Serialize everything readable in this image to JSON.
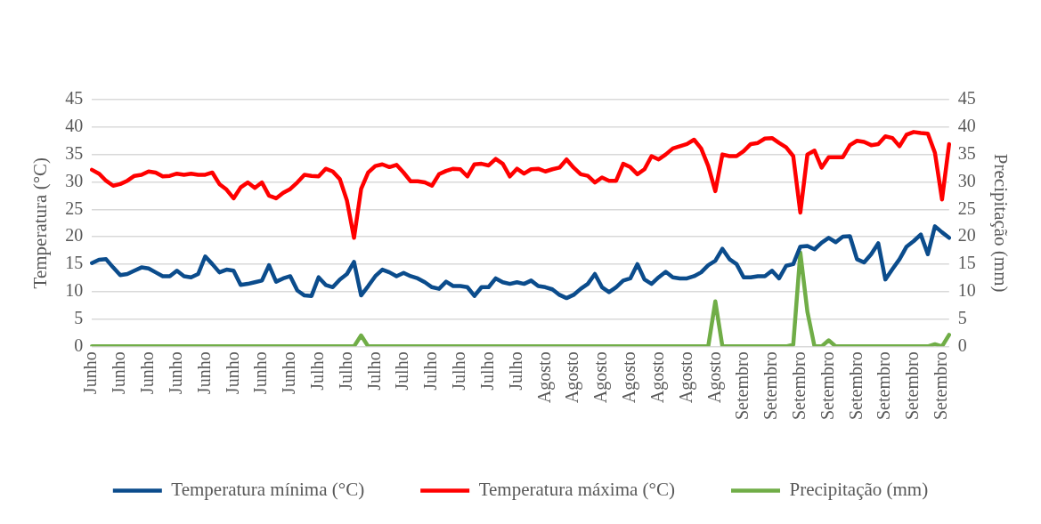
{
  "chart_data": {
    "type": "line",
    "ylabel": "Temperatura (°C)",
    "y2label": "Precipitação (mm)",
    "categories": [
      "Junho",
      null,
      null,
      null,
      "Junho",
      null,
      null,
      null,
      "Junho",
      null,
      null,
      null,
      "Junho",
      null,
      null,
      null,
      "Junho",
      null,
      null,
      null,
      "Junho",
      null,
      null,
      null,
      "Junho",
      null,
      null,
      null,
      "Junho",
      null,
      null,
      null,
      "Julho",
      null,
      null,
      null,
      "Julho",
      null,
      null,
      null,
      "Julho",
      null,
      null,
      null,
      "Julho",
      null,
      null,
      null,
      "Julho",
      null,
      null,
      null,
      "Julho",
      null,
      null,
      null,
      "Julho",
      null,
      null,
      null,
      "Julho",
      null,
      null,
      null,
      "Agosto",
      null,
      null,
      null,
      "Agosto",
      null,
      null,
      null,
      "Agosto",
      null,
      null,
      null,
      "Agosto",
      null,
      null,
      null,
      "Agosto",
      null,
      null,
      null,
      "Agosto",
      null,
      null,
      null,
      "Agosto",
      null,
      null,
      null,
      "Setembro",
      null,
      null,
      null,
      "Setembro",
      null,
      null,
      null,
      "Setembro",
      null,
      null,
      null,
      "Setembro",
      null,
      null,
      null,
      "Setembro",
      null,
      null,
      null,
      "Setembro",
      null,
      null,
      null,
      "Setembro",
      null,
      null,
      null,
      "Setembro",
      null
    ],
    "series": [
      {
        "name": "Temperatura mínima (°C)",
        "color": "#0b4c8c",
        "values": [
          15.2,
          15.8,
          15.9,
          14.4,
          13.0,
          13.2,
          13.8,
          14.4,
          14.2,
          13.5,
          12.8,
          12.8,
          13.8,
          12.8,
          12.6,
          13.2,
          16.4,
          15.0,
          13.5,
          14.0,
          13.8,
          11.2,
          11.4,
          11.7,
          12.0,
          14.8,
          11.8,
          12.4,
          12.8,
          10.2,
          9.3,
          9.2,
          12.6,
          11.2,
          10.8,
          12.2,
          13.2,
          15.4,
          9.3,
          11.0,
          12.8,
          14.0,
          13.5,
          12.8,
          13.4,
          12.8,
          12.4,
          11.7,
          10.8,
          10.5,
          11.8,
          11.0,
          11.0,
          10.8,
          9.2,
          10.8,
          10.8,
          12.4,
          11.7,
          11.4,
          11.7,
          11.4,
          12.0,
          11.0,
          10.8,
          10.4,
          9.4,
          8.8,
          9.4,
          10.5,
          11.4,
          13.2,
          10.8,
          9.9,
          10.8,
          12.0,
          12.4,
          15.0,
          12.2,
          11.4,
          12.6,
          13.6,
          12.6,
          12.4,
          12.4,
          12.8,
          13.5,
          14.8,
          15.6,
          17.8,
          15.9,
          15.0,
          12.6,
          12.6,
          12.8,
          12.8,
          13.8,
          12.4,
          14.7,
          15.0,
          18.2,
          18.3,
          17.7,
          18.9,
          19.8,
          19.0,
          20.0,
          20.1,
          15.9,
          15.3,
          16.8,
          18.8,
          12.2,
          14.1,
          15.9,
          18.2,
          19.2,
          20.4,
          16.8,
          21.9,
          20.8,
          19.8
        ]
      },
      {
        "name": "Temperatura máxima (°C)",
        "color": "#ff0000",
        "values": [
          32.2,
          31.5,
          30.2,
          29.3,
          29.6,
          30.2,
          31.1,
          31.3,
          31.9,
          31.7,
          31.0,
          31.1,
          31.5,
          31.3,
          31.5,
          31.3,
          31.3,
          31.7,
          29.6,
          28.6,
          27.0,
          29.0,
          29.9,
          28.9,
          29.9,
          27.5,
          27.0,
          28.0,
          28.7,
          29.9,
          31.3,
          31.1,
          31.0,
          32.4,
          31.9,
          30.5,
          26.6,
          19.8,
          28.7,
          31.7,
          32.9,
          33.2,
          32.7,
          33.1,
          31.7,
          30.1,
          30.1,
          29.9,
          29.3,
          31.4,
          32.0,
          32.4,
          32.3,
          31.0,
          33.2,
          33.3,
          33.0,
          34.2,
          33.3,
          31.0,
          32.4,
          31.5,
          32.3,
          32.4,
          31.9,
          32.3,
          32.6,
          34.1,
          32.6,
          31.4,
          31.1,
          29.9,
          30.8,
          30.2,
          30.2,
          33.3,
          32.7,
          31.4,
          32.3,
          34.7,
          34.1,
          35.0,
          36.1,
          36.5,
          36.9,
          37.7,
          36.1,
          32.9,
          28.3,
          35.0,
          34.7,
          34.7,
          35.6,
          36.9,
          37.1,
          37.9,
          38.0,
          37.1,
          36.3,
          34.7,
          24.4,
          35.0,
          35.7,
          32.6,
          34.5,
          34.5,
          34.5,
          36.7,
          37.5,
          37.3,
          36.7,
          36.9,
          38.3,
          38.0,
          36.5,
          38.6,
          39.1,
          38.9,
          38.8,
          35.3,
          26.8,
          36.9
        ]
      },
      {
        "name": "Precipitação (mm)",
        "color": "#70ad47",
        "axis": "y2",
        "values": [
          0,
          0,
          0,
          0,
          0,
          0,
          0,
          0,
          0,
          0,
          0,
          0,
          0,
          0,
          0,
          0,
          0,
          0,
          0,
          0,
          0,
          0,
          0,
          0,
          0,
          0,
          0,
          0,
          0,
          0,
          0,
          0,
          0,
          0,
          0,
          0,
          0,
          0,
          2.0,
          0,
          0,
          0,
          0,
          0,
          0,
          0,
          0,
          0,
          0,
          0,
          0,
          0,
          0,
          0,
          0,
          0,
          0,
          0,
          0,
          0,
          0,
          0,
          0,
          0,
          0,
          0,
          0,
          0,
          0,
          0,
          0,
          0,
          0,
          0,
          0,
          0,
          0,
          0,
          0,
          0,
          0,
          0,
          0,
          0,
          0,
          0,
          0,
          0,
          8.2,
          0,
          0,
          0,
          0,
          0,
          0,
          0,
          0,
          0,
          0,
          0.3,
          17.1,
          6.3,
          0,
          0,
          1.1,
          0,
          0,
          0,
          0,
          0,
          0,
          0,
          0,
          0,
          0,
          0,
          0,
          0,
          0,
          0.4,
          0,
          2.1
        ]
      }
    ],
    "ylim": [
      0,
      45
    ],
    "yticks": [
      0,
      5,
      10,
      15,
      20,
      25,
      30,
      35,
      40,
      45
    ],
    "y2lim": [
      0,
      45
    ],
    "y2ticks": [
      0,
      5,
      10,
      15,
      20,
      25,
      30,
      35,
      40,
      45
    ],
    "grid": "y",
    "legend": "bottom",
    "marker": "none",
    "line_style": "solid"
  }
}
